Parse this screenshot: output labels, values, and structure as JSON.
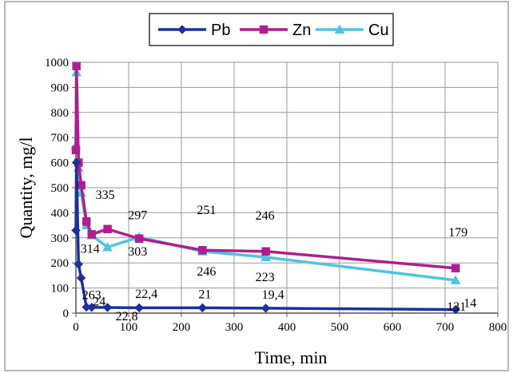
{
  "chart_data": {
    "type": "line",
    "xlabel": "Time, min",
    "ylabel": "Quantity, mg/l",
    "xlim": [
      0,
      800
    ],
    "ylim": [
      0,
      1000
    ],
    "xticks": [
      "0",
      "100",
      "200",
      "300",
      "400",
      "500",
      "600",
      "700",
      "800"
    ],
    "yticks": [
      "0",
      "100",
      "200",
      "300",
      "400",
      "500",
      "600",
      "700",
      "800",
      "900",
      "1000"
    ],
    "grid": true,
    "legend_position": "top",
    "series": [
      {
        "name": "Pb",
        "color": "#1f2f9a",
        "marker": "diamond",
        "x": [
          0,
          1,
          5,
          10,
          20,
          30,
          60,
          120,
          240,
          360,
          720
        ],
        "y": [
          330,
          600,
          195,
          140,
          24,
          22.8,
          22.4,
          21,
          21,
          19.4,
          14
        ]
      },
      {
        "name": "Zn",
        "color": "#b01e8e",
        "marker": "square",
        "x": [
          0,
          1,
          5,
          10,
          20,
          30,
          60,
          120,
          240,
          360,
          720
        ],
        "y": [
          650,
          985,
          600,
          510,
          365,
          314,
          335,
          297,
          251,
          246,
          179
        ]
      },
      {
        "name": "Cu",
        "color": "#4fc4e0",
        "marker": "triangle",
        "x": [
          0,
          1,
          5,
          10,
          20,
          30,
          60,
          120,
          240,
          360,
          720
        ],
        "y": [
          670,
          960,
          580,
          480,
          350,
          310,
          263,
          303,
          246,
          223,
          131
        ]
      }
    ],
    "data_labels": [
      {
        "text": "24",
        "x": 20,
        "y": 24
      },
      {
        "text": "22,8",
        "x": 60,
        "y": 22.8
      },
      {
        "text": "22,4",
        "x": 120,
        "y": 22.4
      },
      {
        "text": "21",
        "x": 240,
        "y": 21
      },
      {
        "text": "19,4",
        "x": 360,
        "y": 19.4
      },
      {
        "text": "14",
        "x": 720,
        "y": 14
      },
      {
        "text": "314",
        "x": 30,
        "y": 314
      },
      {
        "text": "263",
        "x": 30,
        "y": 263
      },
      {
        "text": "335",
        "x": 60,
        "y": 335
      },
      {
        "text": "297",
        "x": 120,
        "y": 297
      },
      {
        "text": "303",
        "x": 120,
        "y": 303
      },
      {
        "text": "251",
        "x": 240,
        "y": 251
      },
      {
        "text": "246",
        "x": 240,
        "y": 246
      },
      {
        "text": "246",
        "x": 360,
        "y": 246
      },
      {
        "text": "223",
        "x": 360,
        "y": 223
      },
      {
        "text": "179",
        "x": 720,
        "y": 179
      },
      {
        "text": "131",
        "x": 720,
        "y": 131
      }
    ]
  }
}
